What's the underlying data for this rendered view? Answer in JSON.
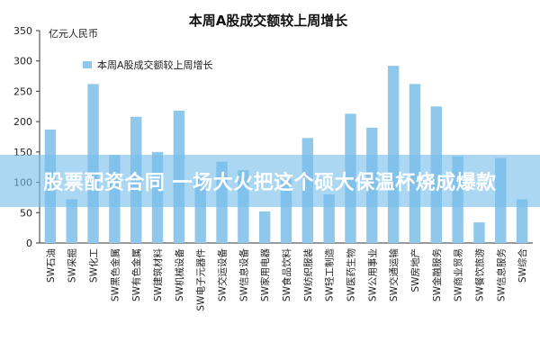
{
  "chart_data": {
    "type": "bar",
    "title": "本周A股成交额较上周增长",
    "ylabel": "亿元人民币",
    "ylim": [
      0,
      350
    ],
    "yticks": [
      0,
      50,
      100,
      150,
      200,
      250,
      300,
      350
    ],
    "grid": false,
    "legend_position": "top-left",
    "color": "#8fc8ea",
    "series": [
      {
        "name": "本周A股成交额较上周增长",
        "values": [
          187,
          72,
          262,
          145,
          208,
          150,
          218,
          110,
          134,
          120,
          52,
          105,
          173,
          80,
          213,
          190,
          292,
          262,
          225,
          143,
          34,
          140,
          72
        ]
      }
    ],
    "categories": [
      "SW石油",
      "SW采掘",
      "SW化工",
      "SW黑色金属",
      "SW有色金属",
      "SW建筑材料",
      "SW机械设备",
      "SW电子元器件",
      "SW交运设备",
      "SW信息设备",
      "SW家用电器",
      "SW食品饮料",
      "SW纺织服装",
      "SW轻工制造",
      "SW医药生物",
      "SW公用事业",
      "SW交通运输",
      "SW房地产",
      "SW金融服务",
      "SW商业贸易",
      "SW餐饮旅游",
      "SW信息服务",
      "SW综合"
    ]
  },
  "banner": {
    "text": "股票配资合同 一场大火把这个硕大保温杯烧成爆款"
  }
}
